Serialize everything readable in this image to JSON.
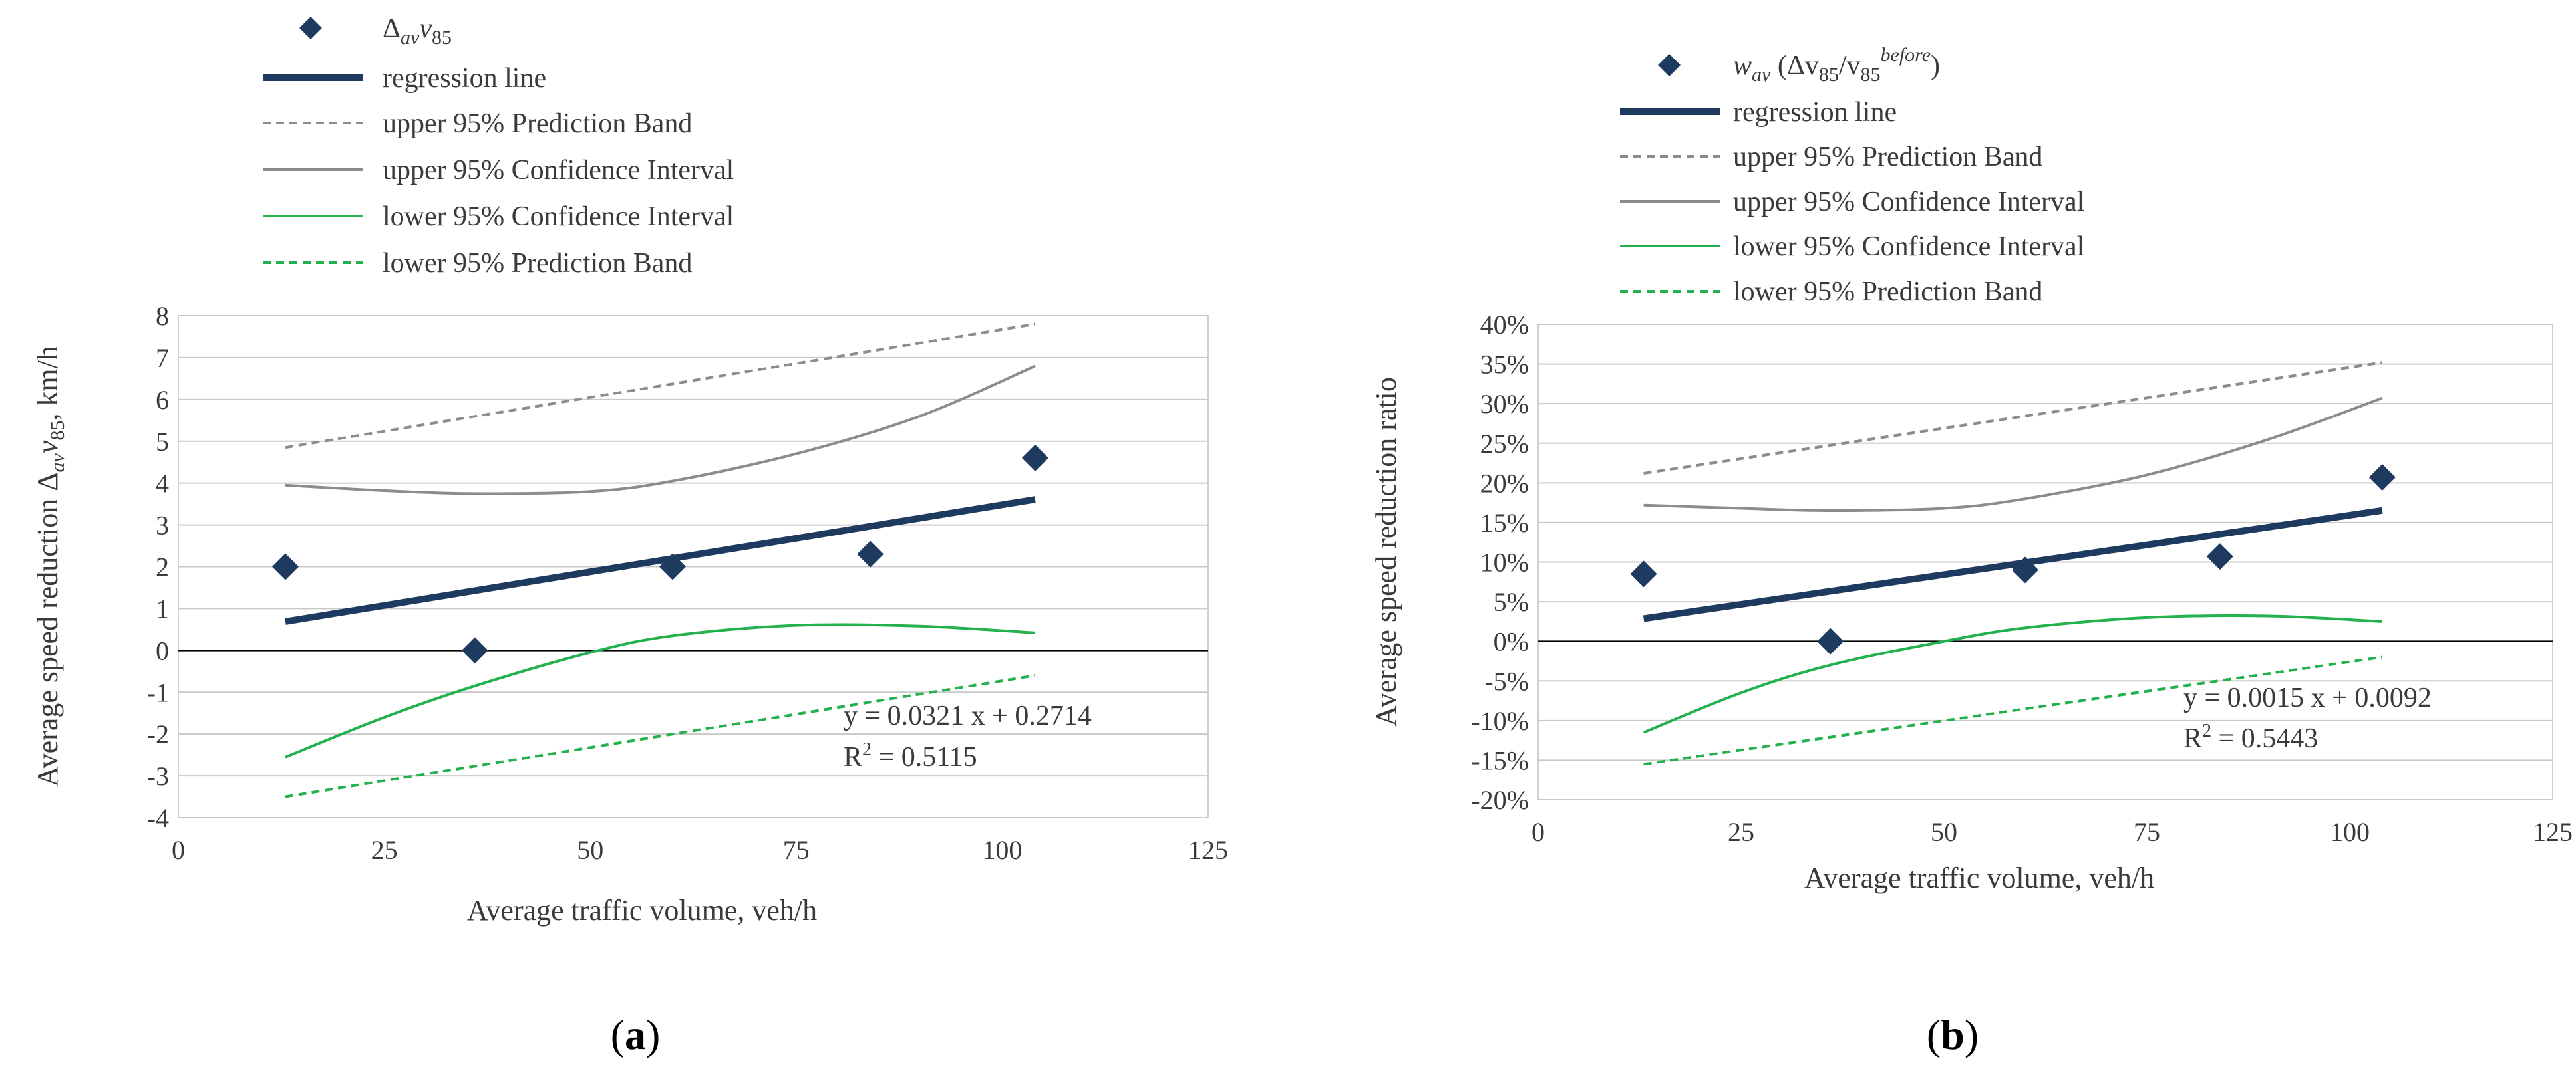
{
  "chart_data": [
    {
      "type": "scatter",
      "panel_label": "(a)",
      "panel_letter": "a",
      "xlabel": "Average traffic volume, veh/h",
      "ylabel": "Average speed reduction Δ",
      "ylabel_sub1": "av",
      "ylabel_mid": "v",
      "ylabel_sub2": "85",
      "ylabel_tail": ", km/h",
      "xlim": [
        0,
        125
      ],
      "ylim": [
        -4,
        8
      ],
      "x_ticks": [
        0,
        25,
        50,
        75,
        100,
        125
      ],
      "y_ticks": [
        -4,
        -3,
        -2,
        -1,
        0,
        1,
        2,
        3,
        4,
        5,
        6,
        7,
        8
      ],
      "y_tick_labels": [
        "-4",
        "-3",
        "-2",
        "-1",
        "0",
        "1",
        "2",
        "3",
        "4",
        "5",
        "6",
        "7",
        "8"
      ],
      "grid": true,
      "legend": {
        "position": "top",
        "entries": [
          {
            "label": "Δ",
            "label_sub": "av",
            "label_mid": "v",
            "label_sub2": "85",
            "style": "marker"
          },
          {
            "label": "regression line",
            "style": "thick"
          },
          {
            "label": "upper 95% Prediction Band",
            "style": "gray-dash"
          },
          {
            "label": "upper 95% Confidence Interval",
            "style": "gray-solid"
          },
          {
            "label": "lower 95% Confidence Interval",
            "style": "green-solid"
          },
          {
            "label": "lower 95% Prediction Band",
            "style": "green-dash"
          }
        ]
      },
      "points": {
        "name": "Δav v85",
        "x": [
          13,
          36,
          60,
          84,
          104
        ],
        "y": [
          2.0,
          0.0,
          2.0,
          2.3,
          4.6
        ]
      },
      "series": [
        {
          "name": "regression line",
          "x": [
            13,
            104
          ],
          "y": [
            0.69,
            3.61
          ]
        },
        {
          "name": "upper 95% Prediction Band",
          "x": [
            13,
            104
          ],
          "y": [
            4.85,
            7.8
          ]
        },
        {
          "name": "upper 95% Confidence Interval",
          "x": [
            13,
            25,
            36,
            50,
            60,
            75,
            90,
            104
          ],
          "y": [
            3.95,
            3.82,
            3.75,
            3.8,
            4.05,
            4.7,
            5.6,
            6.8
          ]
        },
        {
          "name": "lower 95% Confidence Interval",
          "x": [
            13,
            25,
            36,
            50,
            60,
            75,
            90,
            104
          ],
          "y": [
            -2.55,
            -1.6,
            -0.85,
            -0.05,
            0.35,
            0.6,
            0.58,
            0.42
          ]
        },
        {
          "name": "lower 95% Prediction Band",
          "x": [
            13,
            104
          ],
          "y": [
            -3.5,
            -0.6
          ]
        }
      ],
      "equation": "y = 0.0321 x + 0.2714",
      "r2_prefix": "R",
      "r2_sup": "2",
      "r2_value": " = 0.5115"
    },
    {
      "type": "scatter",
      "panel_label": "(b)",
      "panel_letter": "b",
      "xlabel": "Average traffic volume, veh/h",
      "ylabel": "Average speed reduction ratio",
      "xlim": [
        0,
        125
      ],
      "ylim": [
        -0.2,
        0.4
      ],
      "x_ticks": [
        0,
        25,
        50,
        75,
        100,
        125
      ],
      "y_ticks": [
        -0.2,
        -0.15,
        -0.1,
        -0.05,
        0,
        0.05,
        0.1,
        0.15,
        0.2,
        0.25,
        0.3,
        0.35,
        0.4
      ],
      "y_tick_labels": [
        "-20%",
        "-15%",
        "-10%",
        "-5%",
        "0%",
        "5%",
        "10%",
        "15%",
        "20%",
        "25%",
        "30%",
        "35%",
        "40%"
      ],
      "grid": true,
      "legend": {
        "position": "top",
        "entries": [
          {
            "label": "w",
            "label_sub": "av",
            "label_mid": " (Δv",
            "label_sub2": "85",
            "label_tail": "/v",
            "label_sub3": "85",
            "label_sup": "before",
            "label_end": ")",
            "style": "marker"
          },
          {
            "label": "regression line",
            "style": "thick"
          },
          {
            "label": "upper 95% Prediction Band",
            "style": "gray-dash"
          },
          {
            "label": "upper 95% Confidence Interval",
            "style": "gray-solid"
          },
          {
            "label": "lower 95% Confidence Interval",
            "style": "green-solid"
          },
          {
            "label": "lower 95% Prediction Band",
            "style": "green-dash"
          }
        ]
      },
      "points": {
        "name": "wav (Δv85/v85before)",
        "x": [
          13,
          36,
          60,
          84,
          104
        ],
        "y": [
          0.085,
          0.0,
          0.09,
          0.107,
          0.207
        ]
      },
      "series": [
        {
          "name": "regression line",
          "x": [
            13,
            104
          ],
          "y": [
            0.0287,
            0.1652
          ]
        },
        {
          "name": "upper 95% Prediction Band",
          "x": [
            13,
            104
          ],
          "y": [
            0.212,
            0.352
          ]
        },
        {
          "name": "upper 95% Confidence Interval",
          "x": [
            13,
            25,
            36,
            50,
            60,
            75,
            90,
            104
          ],
          "y": [
            0.172,
            0.168,
            0.165,
            0.168,
            0.18,
            0.21,
            0.255,
            0.307
          ]
        },
        {
          "name": "lower 95% Confidence Interval",
          "x": [
            13,
            25,
            36,
            50,
            60,
            75,
            90,
            104
          ],
          "y": [
            -0.115,
            -0.065,
            -0.03,
            0.0,
            0.017,
            0.03,
            0.032,
            0.025
          ]
        },
        {
          "name": "lower 95% Prediction Band",
          "x": [
            13,
            104
          ],
          "y": [
            -0.155,
            -0.02
          ]
        }
      ],
      "equation": "y = 0.0015 x + 0.0092",
      "r2_prefix": "R",
      "r2_sup": "2",
      "r2_value": " = 0.5443"
    }
  ],
  "colors": {
    "marker": "#1f3a5f",
    "regression": "#1f3a5f",
    "gray": "#8c8c8c",
    "green": "#22b14c",
    "grid": "#c8c8c8",
    "frame": "#d0d0d0"
  }
}
